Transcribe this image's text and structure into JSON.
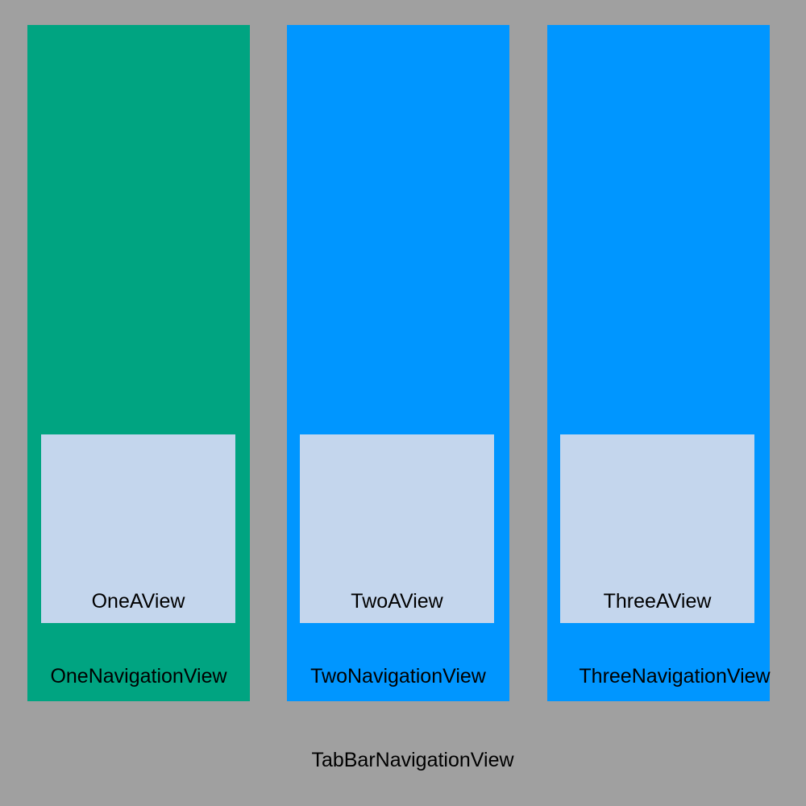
{
  "root": {
    "label": "TabBarNavigationView",
    "background": "#a0a0a0"
  },
  "navigation_views": [
    {
      "label": "OneNavigationView",
      "color": "#00a481",
      "child": {
        "label": "OneAView",
        "color": "#c4d6ed"
      }
    },
    {
      "label": "TwoNavigationView",
      "color": "#0096ff",
      "child": {
        "label": "TwoAView",
        "color": "#c4d6ed"
      }
    },
    {
      "label": "ThreeNavigationView",
      "color": "#0096ff",
      "child": {
        "label": "ThreeAView",
        "color": "#c4d6ed"
      }
    }
  ]
}
